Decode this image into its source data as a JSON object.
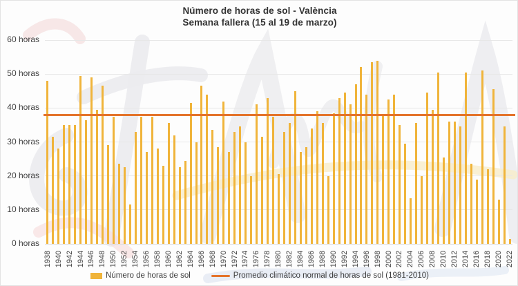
{
  "title": {
    "line1": "Número de horas de sol - València",
    "line2": "Semana fallera (15 al 19 de marzo)"
  },
  "colors": {
    "bar": "#F0B43A",
    "avg_line": "#E4742B",
    "grid": "#E7E7E7",
    "axis_text": "#3F3F3F",
    "title_text": "#333333"
  },
  "legend": {
    "bar_label": "Número de horas de sol",
    "line_label": "Promedio climático normal de horas de sol (1981-2010)"
  },
  "chart_data": {
    "type": "bar",
    "title": "Número de horas de sol - València",
    "subtitle": "Semana fallera (15 al 19 de marzo)",
    "xlabel": "",
    "ylabel": "horas",
    "ylim": [
      0,
      60
    ],
    "grid": "horizontal",
    "legend_position": "bottom",
    "yticks": [
      {
        "value": 0,
        "label": "0 horas"
      },
      {
        "value": 10,
        "label": "10 horas"
      },
      {
        "value": 20,
        "label": "20 horas"
      },
      {
        "value": 30,
        "label": "30 horas"
      },
      {
        "value": 40,
        "label": "40 horas"
      },
      {
        "value": 50,
        "label": "50 horas"
      },
      {
        "value": 60,
        "label": "60 horas"
      }
    ],
    "xtick_step": 2,
    "years": [
      1938,
      1939,
      1940,
      1941,
      1942,
      1943,
      1944,
      1945,
      1946,
      1947,
      1948,
      1949,
      1950,
      1951,
      1952,
      1953,
      1954,
      1955,
      1956,
      1957,
      1958,
      1959,
      1960,
      1961,
      1962,
      1963,
      1964,
      1965,
      1966,
      1967,
      1968,
      1969,
      1970,
      1971,
      1972,
      1973,
      1974,
      1975,
      1976,
      1977,
      1978,
      1979,
      1980,
      1981,
      1982,
      1983,
      1984,
      1985,
      1986,
      1987,
      1988,
      1989,
      1990,
      1991,
      1992,
      1993,
      1994,
      1995,
      1996,
      1997,
      1998,
      1999,
      2000,
      2001,
      2002,
      2003,
      2004,
      2005,
      2006,
      2007,
      2008,
      2009,
      2010,
      2011,
      2012,
      2013,
      2014,
      2015,
      2016,
      2017,
      2018,
      2019,
      2020,
      2021,
      2022
    ],
    "series": [
      {
        "name": "Número de horas de sol",
        "values": [
          48,
          31.5,
          28,
          35,
          35,
          35,
          49.5,
          36.5,
          49,
          39.5,
          46.5,
          29,
          37.5,
          23.5,
          22.5,
          11.5,
          33,
          37.5,
          27,
          37.5,
          28,
          23,
          35.5,
          32,
          22.5,
          24.5,
          41.5,
          30,
          46.5,
          44,
          33.5,
          28.5,
          42,
          27,
          33,
          34.5,
          30,
          20,
          41,
          31.5,
          43,
          37.5,
          20.5,
          33,
          35.5,
          45,
          27,
          28.5,
          34,
          39,
          35.5,
          20,
          38.5,
          43,
          44.5,
          41,
          47,
          52,
          44,
          53.5,
          54,
          38,
          42.5,
          44,
          35,
          29.5,
          13.5,
          35.5,
          20,
          44.5,
          39.5,
          50.5,
          25.5,
          36,
          36,
          34.5,
          50.5,
          23.5,
          19,
          51,
          22,
          45.5,
          13,
          34.5,
          1.5
        ]
      }
    ],
    "average_line": {
      "label": "Promedio climático normal de horas de sol (1981-2010)",
      "value": 38
    }
  }
}
